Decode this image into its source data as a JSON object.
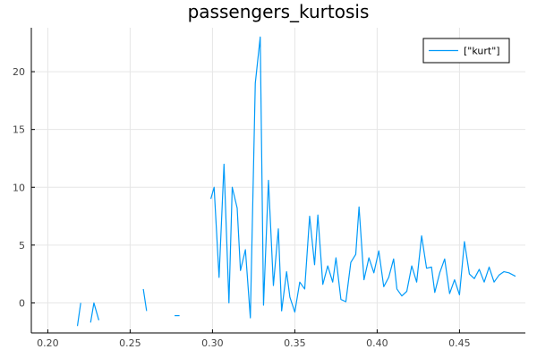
{
  "chart_data": {
    "type": "line",
    "title": "passengers_kurtosis",
    "xlabel": "",
    "ylabel": "",
    "xlim": [
      0.19,
      0.49
    ],
    "ylim": [
      -2.6,
      23.8
    ],
    "xticks": [
      0.2,
      0.25,
      0.3,
      0.35,
      0.4,
      0.45
    ],
    "xtick_labels": [
      "0.20",
      "0.25",
      "0.30",
      "0.35",
      "0.40",
      "0.45"
    ],
    "yticks": [
      0,
      5,
      10,
      15,
      20
    ],
    "ytick_labels": [
      "0",
      "5",
      "10",
      "15",
      "20"
    ],
    "grid": true,
    "legend_position": "top-right",
    "series": [
      {
        "name": "[\"kurt\"]",
        "color": "#009af9",
        "segments": [
          [
            [
              0.218,
              -2.0
            ],
            [
              0.22,
              0.0
            ]
          ],
          [
            [
              0.226,
              -1.7
            ],
            [
              0.228,
              0.0
            ],
            [
              0.231,
              -1.5
            ]
          ],
          [
            [
              0.258,
              1.2
            ],
            [
              0.26,
              -0.7
            ]
          ],
          [
            [
              0.277,
              -1.1
            ],
            [
              0.28,
              -1.1
            ]
          ],
          [
            [
              0.299,
              9.0
            ],
            [
              0.301,
              10.0
            ],
            [
              0.304,
              2.2
            ],
            [
              0.307,
              12.0
            ],
            [
              0.31,
              0.0
            ],
            [
              0.312,
              10.0
            ],
            [
              0.315,
              8.2
            ],
            [
              0.317,
              2.8
            ],
            [
              0.32,
              4.6
            ],
            [
              0.323,
              -1.3
            ],
            [
              0.326,
              19.0
            ],
            [
              0.329,
              23.0
            ],
            [
              0.331,
              -0.2
            ],
            [
              0.334,
              10.6
            ],
            [
              0.337,
              1.5
            ],
            [
              0.34,
              6.4
            ],
            [
              0.342,
              -0.7
            ],
            [
              0.345,
              2.7
            ],
            [
              0.347,
              0.5
            ],
            [
              0.35,
              -0.8
            ],
            [
              0.353,
              1.8
            ],
            [
              0.356,
              1.2
            ],
            [
              0.359,
              7.5
            ],
            [
              0.362,
              3.3
            ],
            [
              0.364,
              7.6
            ],
            [
              0.367,
              1.6
            ],
            [
              0.37,
              3.2
            ],
            [
              0.373,
              1.8
            ],
            [
              0.375,
              3.9
            ],
            [
              0.378,
              0.3
            ],
            [
              0.381,
              0.1
            ],
            [
              0.384,
              3.5
            ],
            [
              0.387,
              4.2
            ],
            [
              0.389,
              8.3
            ],
            [
              0.392,
              2.0
            ],
            [
              0.395,
              3.9
            ],
            [
              0.398,
              2.6
            ],
            [
              0.401,
              4.5
            ],
            [
              0.404,
              1.4
            ],
            [
              0.407,
              2.2
            ],
            [
              0.41,
              3.8
            ],
            [
              0.412,
              1.2
            ],
            [
              0.415,
              0.6
            ],
            [
              0.418,
              1.0
            ],
            [
              0.421,
              3.2
            ],
            [
              0.424,
              1.8
            ],
            [
              0.427,
              5.8
            ],
            [
              0.43,
              3.0
            ],
            [
              0.433,
              3.1
            ],
            [
              0.435,
              0.9
            ],
            [
              0.438,
              2.6
            ],
            [
              0.441,
              3.8
            ],
            [
              0.444,
              0.8
            ],
            [
              0.447,
              2.0
            ],
            [
              0.45,
              0.7
            ],
            [
              0.453,
              5.3
            ],
            [
              0.456,
              2.5
            ],
            [
              0.459,
              2.1
            ],
            [
              0.462,
              2.9
            ],
            [
              0.465,
              1.8
            ],
            [
              0.468,
              3.1
            ],
            [
              0.471,
              1.8
            ],
            [
              0.474,
              2.4
            ],
            [
              0.477,
              2.7
            ],
            [
              0.48,
              2.6
            ],
            [
              0.484,
              2.3
            ]
          ]
        ]
      }
    ]
  }
}
